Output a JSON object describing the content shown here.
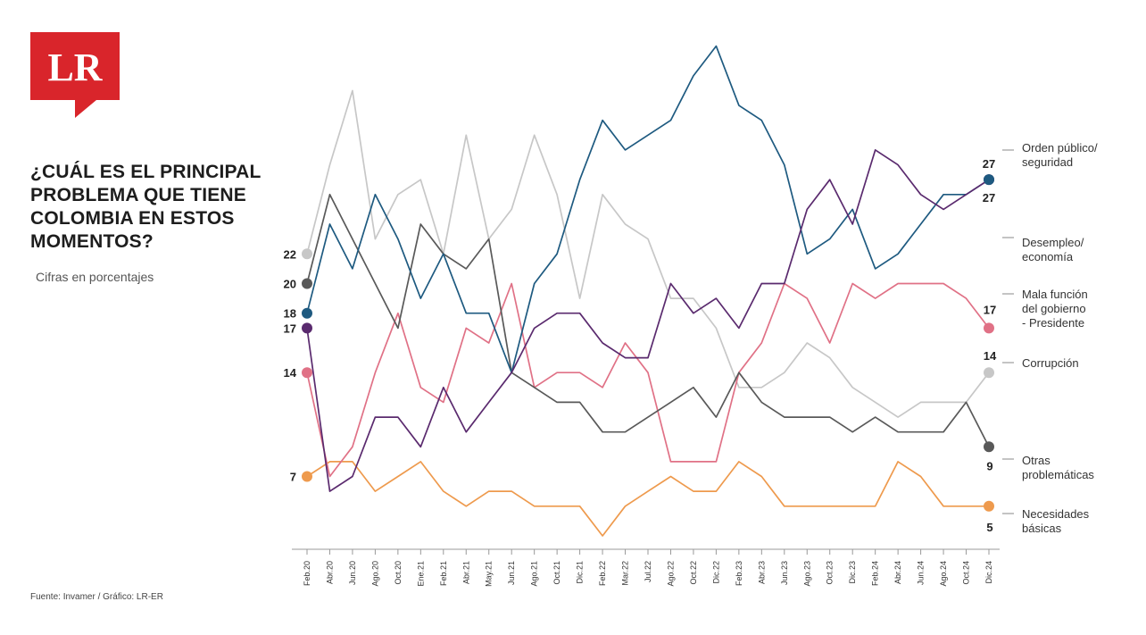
{
  "logo": {
    "text": "LR",
    "color": "#d9252b"
  },
  "headline": "¿CUÁL ES EL PRINCIPAL PROBLEMA QUE TIENE COLOMBIA EN ESTOS MOMENTOS?",
  "subtitle": "Cifras en porcentajes",
  "source": "Fuente: Invamer / Gráfico: LR-ER",
  "chart_data": {
    "type": "line",
    "title": "¿CUÁL ES EL PRINCIPAL PROBLEMA QUE TIENE COLOMBIA EN ESTOS MOMENTOS?",
    "ylabel": "Cifras en porcentajes",
    "xlabel": "",
    "ylim": [
      3,
      37
    ],
    "grid": false,
    "legend_placement": "right",
    "x": [
      "Feb.20",
      "Abr.20",
      "Jun.20",
      "Ago.20",
      "Oct.20",
      "Ene.21",
      "Feb.21",
      "Abr.21",
      "May.21",
      "Jun.21",
      "Ago.21",
      "Oct.21",
      "Dic.21",
      "Feb.22",
      "Mar.22",
      "Jul.22",
      "Ago.22",
      "Oct.22",
      "Dic.22",
      "Feb.23",
      "Abr.23",
      "Jun.23",
      "Ago.23",
      "Oct.23",
      "Dic.23",
      "Feb.24",
      "Abr.24",
      "Jun.24",
      "Ago.24",
      "Oct.24",
      "Dic.24"
    ],
    "series": [
      {
        "name": "Orden público/ seguridad",
        "color": "#5a2a6e",
        "start_label": "17",
        "end_label": "27",
        "values": [
          17,
          6,
          7,
          11,
          11,
          9,
          13,
          10,
          12,
          14,
          17,
          18,
          18,
          16,
          15,
          15,
          20,
          18,
          19,
          17,
          20,
          20,
          25,
          27,
          24,
          29,
          28,
          26,
          25,
          26,
          27
        ]
      },
      {
        "name": "Desempleo/ economía",
        "color": "#1e5a80",
        "start_label": "18",
        "end_label": "27",
        "values": [
          18,
          24,
          21,
          26,
          23,
          19,
          22,
          18,
          18,
          14,
          20,
          22,
          27,
          31,
          29,
          30,
          31,
          34,
          36,
          32,
          31,
          28,
          22,
          23,
          25,
          21,
          22,
          24,
          26,
          26,
          27
        ]
      },
      {
        "name": "Mala función del gobierno - Presidente",
        "color": "#e07186",
        "start_label": "14",
        "end_label": "17",
        "values": [
          14,
          7,
          9,
          14,
          18,
          13,
          12,
          17,
          16,
          20,
          13,
          14,
          14,
          13,
          16,
          14,
          8,
          8,
          8,
          14,
          16,
          20,
          19,
          16,
          20,
          19,
          20,
          20,
          20,
          19,
          17
        ]
      },
      {
        "name": "Corrupción",
        "color": "#c7c7c7",
        "start_label": "22",
        "end_label": "14",
        "values": [
          22,
          28,
          33,
          23,
          26,
          27,
          22,
          30,
          23,
          25,
          30,
          26,
          19,
          26,
          24,
          23,
          19,
          19,
          17,
          13,
          13,
          14,
          16,
          15,
          13,
          12,
          11,
          12,
          12,
          12,
          14
        ]
      },
      {
        "name": "Otras problemáticas",
        "color": "#595959",
        "start_label": "20",
        "end_label": "9",
        "values": [
          20,
          26,
          23,
          20,
          17,
          24,
          22,
          21,
          23,
          14,
          13,
          12,
          12,
          10,
          10,
          11,
          12,
          13,
          11,
          14,
          12,
          11,
          11,
          11,
          10,
          11,
          10,
          10,
          10,
          12,
          9
        ]
      },
      {
        "name": "Necesidades básicas",
        "color": "#ee9a4d",
        "start_label": "7",
        "end_label": "5",
        "values": [
          7,
          8,
          8,
          6,
          7,
          8,
          6,
          5,
          6,
          6,
          5,
          5,
          5,
          3,
          5,
          6,
          7,
          6,
          6,
          8,
          7,
          5,
          5,
          5,
          5,
          5,
          8,
          7,
          5,
          5,
          5
        ]
      }
    ]
  }
}
